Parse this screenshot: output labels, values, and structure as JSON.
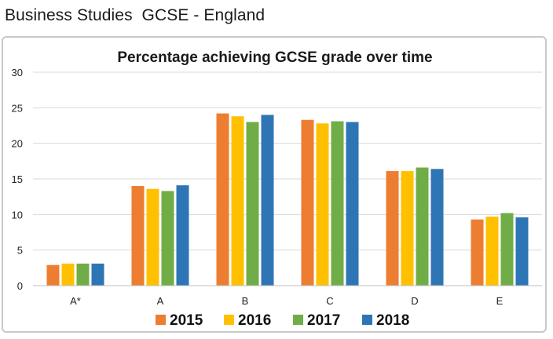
{
  "page": {
    "heading": "Business Studies  GCSE - England"
  },
  "chart_data": {
    "type": "bar",
    "title": "Percentage achieving GCSE grade over time",
    "xlabel": "",
    "ylabel": "",
    "categories": [
      "A*",
      "A",
      "B",
      "C",
      "D",
      "E"
    ],
    "ylim": [
      0,
      30
    ],
    "yticks": [
      0,
      5,
      10,
      15,
      20,
      25,
      30
    ],
    "grid": true,
    "legend": "bottom",
    "series": [
      {
        "name": "2015",
        "color": "#ED7D31",
        "values": [
          2.9,
          14.0,
          24.2,
          23.3,
          16.1,
          9.3
        ]
      },
      {
        "name": "2016",
        "color": "#FFC000",
        "values": [
          3.1,
          13.6,
          23.8,
          22.8,
          16.1,
          9.7
        ]
      },
      {
        "name": "2017",
        "color": "#70AD47",
        "values": [
          3.1,
          13.3,
          23.0,
          23.1,
          16.6,
          10.2
        ]
      },
      {
        "name": "2018",
        "color": "#2E75B6",
        "values": [
          3.1,
          14.1,
          24.0,
          23.0,
          16.4,
          9.6
        ]
      }
    ]
  }
}
